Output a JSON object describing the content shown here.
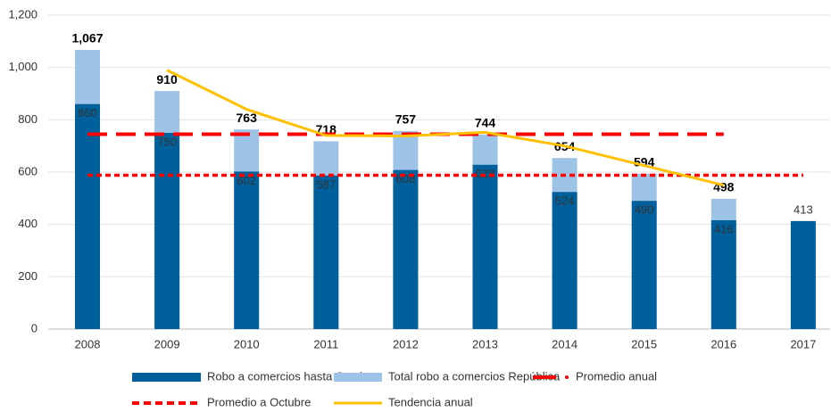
{
  "chart_data": {
    "type": "bar",
    "categories": [
      "2008",
      "2009",
      "2010",
      "2011",
      "2012",
      "2013",
      "2014",
      "2015",
      "2016",
      "2017"
    ],
    "series": [
      {
        "name": "Robo a comercios hasta Octubre",
        "color": "#00609c",
        "kind": "bar",
        "values": [
          860,
          750,
          602,
          587,
          608,
          628,
          524,
          490,
          416,
          413
        ]
      },
      {
        "name": "Total robo a comercios República",
        "color": "#9dc3e6",
        "kind": "bar",
        "values": [
          1067,
          910,
          763,
          718,
          757,
          744,
          654,
          594,
          498,
          null
        ],
        "value_labels": [
          "1,067",
          "910",
          "763",
          "718",
          "757",
          "744",
          "654",
          "594",
          "498",
          null
        ]
      },
      {
        "name": "Promedio anual",
        "color": "#ff0000",
        "kind": "dashed",
        "values": [
          745,
          745,
          745,
          745,
          745,
          745,
          745,
          745,
          745,
          null
        ]
      },
      {
        "name": "Promedio a Octubre",
        "color": "#ff0000",
        "kind": "dotted",
        "values": [
          588,
          588,
          588,
          588,
          588,
          588,
          588,
          588,
          588,
          588
        ]
      },
      {
        "name": "Tendencia anual",
        "color": "#ffc000",
        "kind": "line",
        "values": [
          null,
          990,
          840,
          740,
          738,
          752,
          700,
          625,
          550,
          null
        ]
      }
    ],
    "ylim": [
      0,
      1200
    ],
    "yticks": [
      0,
      200,
      400,
      600,
      800,
      {
        "value": 1000,
        "label": "1,000"
      },
      {
        "value": 1200,
        "label": "1,200"
      }
    ],
    "grid": true
  }
}
